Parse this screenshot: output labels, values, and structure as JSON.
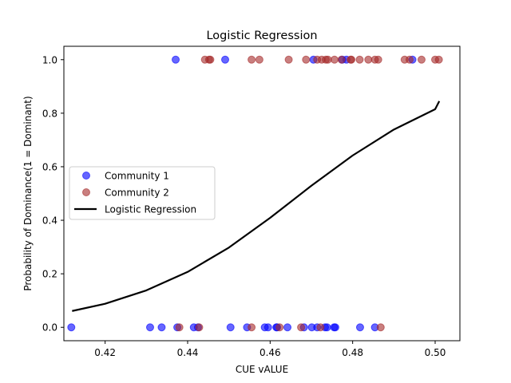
{
  "chart_data": {
    "type": "scatter",
    "title": "Logistic Regression",
    "xlabel": "CUE vALUE",
    "ylabel": "Probability of Dominance(1 = Dominant)",
    "xlim": [
      0.41,
      0.506
    ],
    "ylim": [
      -0.05,
      1.05
    ],
    "xticks": [
      0.42,
      0.44,
      0.46,
      0.48,
      0.5
    ],
    "xtick_labels": [
      "0.42",
      "0.44",
      "0.46",
      "0.48",
      "0.50"
    ],
    "yticks": [
      0.0,
      0.2,
      0.4,
      0.6,
      0.8,
      1.0
    ],
    "ytick_labels": [
      "0.0",
      "0.2",
      "0.4",
      "0.6",
      "0.8",
      "1.0"
    ],
    "grid": false,
    "legend_position": "center-left",
    "series": [
      {
        "name": "Community 1",
        "kind": "scatter",
        "color": "#0000ff",
        "points": [
          [
            0.4371,
            1
          ],
          [
            0.4491,
            1
          ],
          [
            0.4705,
            1
          ],
          [
            0.4775,
            1
          ],
          [
            0.4785,
            1
          ],
          [
            0.4945,
            1
          ],
          [
            0.4118,
            0
          ],
          [
            0.4309,
            0
          ],
          [
            0.4337,
            0
          ],
          [
            0.4375,
            0
          ],
          [
            0.4415,
            0
          ],
          [
            0.4425,
            0
          ],
          [
            0.4504,
            0
          ],
          [
            0.4544,
            0
          ],
          [
            0.4587,
            0
          ],
          [
            0.4595,
            0
          ],
          [
            0.4615,
            0
          ],
          [
            0.4617,
            0
          ],
          [
            0.4642,
            0
          ],
          [
            0.4682,
            0
          ],
          [
            0.4701,
            0
          ],
          [
            0.4714,
            0
          ],
          [
            0.4733,
            0
          ],
          [
            0.4738,
            0
          ],
          [
            0.4755,
            0
          ],
          [
            0.4758,
            0
          ],
          [
            0.4818,
            0
          ],
          [
            0.4854,
            0
          ]
        ]
      },
      {
        "name": "Community 2",
        "kind": "scatter",
        "color": "#a52a2a",
        "points": [
          [
            0.4442,
            1
          ],
          [
            0.4452,
            1
          ],
          [
            0.4455,
            1
          ],
          [
            0.4555,
            1
          ],
          [
            0.4574,
            1
          ],
          [
            0.4645,
            1
          ],
          [
            0.4687,
            1
          ],
          [
            0.4714,
            1
          ],
          [
            0.4725,
            1
          ],
          [
            0.4735,
            1
          ],
          [
            0.474,
            1
          ],
          [
            0.4756,
            1
          ],
          [
            0.4773,
            1
          ],
          [
            0.4795,
            1
          ],
          [
            0.4797,
            1
          ],
          [
            0.4817,
            1
          ],
          [
            0.4838,
            1
          ],
          [
            0.4854,
            1
          ],
          [
            0.4862,
            1
          ],
          [
            0.4926,
            1
          ],
          [
            0.4938,
            1
          ],
          [
            0.4967,
            1
          ],
          [
            0.5,
            1
          ],
          [
            0.5009,
            1
          ],
          [
            0.438,
            0
          ],
          [
            0.4428,
            0
          ],
          [
            0.4555,
            0
          ],
          [
            0.4623,
            0
          ],
          [
            0.4675,
            0
          ],
          [
            0.4722,
            0
          ],
          [
            0.4868,
            0
          ]
        ]
      },
      {
        "name": "Logistic Regression",
        "kind": "line",
        "color": "#000000",
        "x": [
          0.412,
          0.42,
          0.43,
          0.44,
          0.45,
          0.46,
          0.47,
          0.48,
          0.49,
          0.5,
          0.501
        ],
        "y": [
          0.061,
          0.088,
          0.138,
          0.207,
          0.298,
          0.409,
          0.529,
          0.642,
          0.739,
          0.815,
          0.845
        ]
      }
    ]
  }
}
